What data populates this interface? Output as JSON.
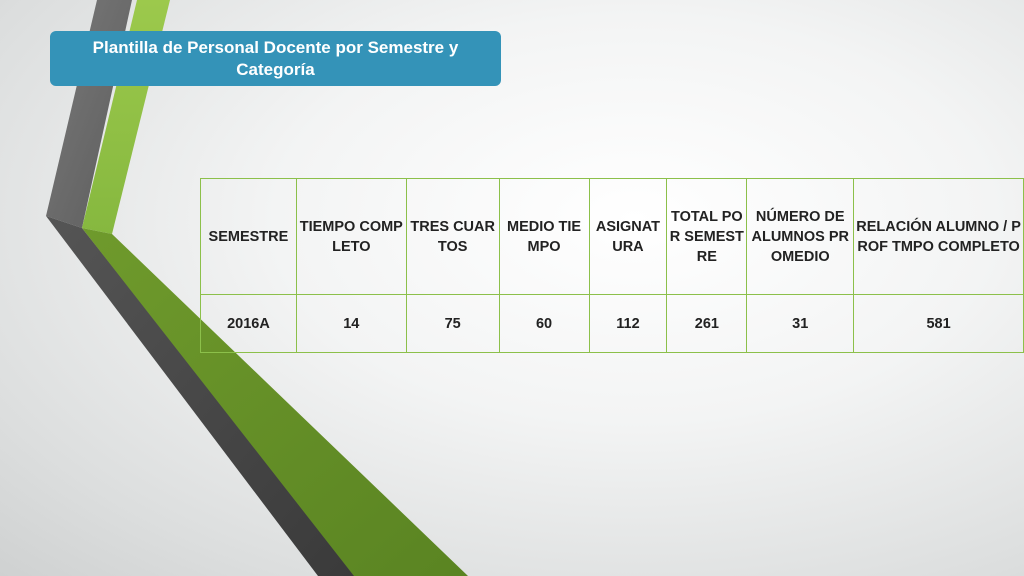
{
  "slide": {
    "title": "Plantilla de Personal Docente por Semestre y Categoría"
  },
  "table": {
    "headers": [
      "SEMESTRE",
      "TIEMPO COMPLETO",
      "TRES CUARTOS",
      "MEDIO TIEMPO",
      "ASIGNATURA",
      "TOTAL POR SEMESTRE",
      "NÚMERO DE ALUMNOS PROMEDIO",
      "RELACIÓN ALUMNO / PROF TMPO COMPLETO"
    ],
    "rows": [
      [
        "2016A",
        "14",
        "75",
        "60",
        "112",
        "261",
        "31",
        "581"
      ]
    ]
  },
  "colors": {
    "title_bg": "#3493b8",
    "table_border": "#8cc04a",
    "accent_green": "#8cc04a",
    "accent_dark_green": "#5f8a26",
    "accent_gray": "#6b6b6b",
    "accent_dark_gray": "#3f3f3f"
  }
}
